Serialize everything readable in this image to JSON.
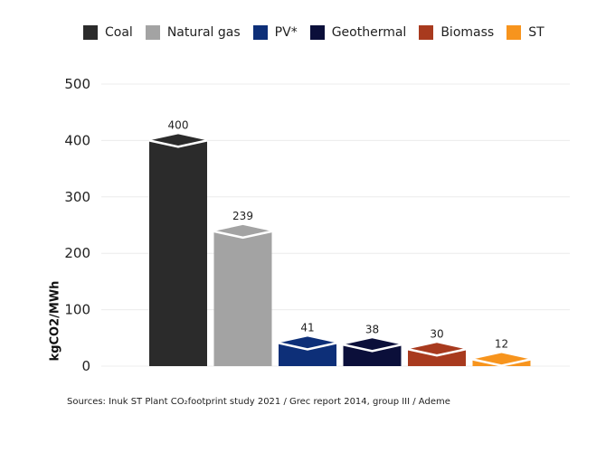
{
  "chart_data": {
    "type": "bar",
    "categories": [
      "Coal",
      "Natural gas",
      "PV*",
      "Geothermal",
      "Biomass",
      "ST"
    ],
    "values": [
      400,
      239,
      41,
      38,
      30,
      12
    ],
    "data_labels": [
      "400",
      "239",
      "41",
      "38",
      "30",
      "12"
    ],
    "colors": [
      "#2b2b2b",
      "#a3a3a3",
      "#0d2f78",
      "#0b0f3a",
      "#a83a1e",
      "#f7941d"
    ],
    "legend": [
      {
        "label": "Coal",
        "color": "#2b2b2b"
      },
      {
        "label": "Natural gas",
        "color": "#a3a3a3"
      },
      {
        "label": "PV*",
        "color": "#0d2f78"
      },
      {
        "label": "Geothermal",
        "color": "#0b0f3a"
      },
      {
        "label": "Biomass",
        "color": "#a83a1e"
      },
      {
        "label": "ST",
        "color": "#f7941d"
      }
    ],
    "legend_position": "top",
    "ylabel": "kgCO2/MWh",
    "xlabel": "",
    "ylim": [
      0,
      500
    ],
    "yticks": [
      0,
      100,
      200,
      300,
      400,
      500
    ],
    "grid": true,
    "style": "3d-cube bars"
  },
  "source_text": "Sources: Inuk ST Plant CO₂footprint study 2021 / Grec report 2014, group III / Ademe"
}
